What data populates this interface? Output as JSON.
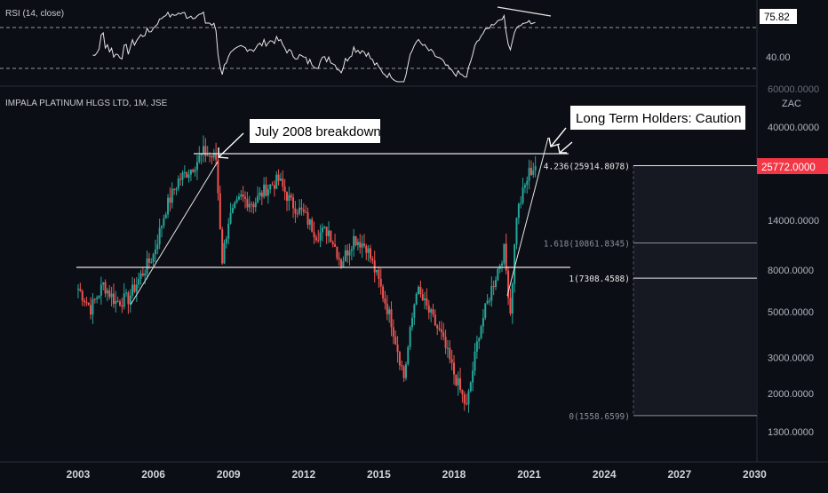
{
  "rsi_panel": {
    "title": "RSI (14, close)",
    "value_label": "75.82",
    "level_label": "40.00",
    "upper_level": 70,
    "lower_level": 30,
    "current_value": 75.82
  },
  "main_panel": {
    "title": "IMPALA PLATINUM HLGS LTD, 1M, JSE",
    "currency": "ZAC",
    "price_label": "25772.0000",
    "current_price": 25772
  },
  "annotations": {
    "breakdown": "July 2008 breakdown",
    "caution": "Long Term Holders: Caution"
  },
  "fib_levels": [
    {
      "label": "4.236(25914.8078)",
      "ratio": 4.236,
      "price": 25914.8078
    },
    {
      "label": "1.618(10861.8345)",
      "ratio": 1.618,
      "price": 10861.8345
    },
    {
      "label": "1(7308.4588)",
      "ratio": 1,
      "price": 7308.4588
    },
    {
      "label": "0(1558.6599)",
      "ratio": 0,
      "price": 1558.6599
    }
  ],
  "price_axis": [
    "40000.0000",
    "14000.0000",
    "8000.0000",
    "5000.0000",
    "3000.0000",
    "2000.0000",
    "1300.0000"
  ],
  "time_axis": [
    "2003",
    "2006",
    "2009",
    "2012",
    "2015",
    "2018",
    "2021",
    "2024",
    "2027",
    "2030"
  ],
  "chart_data": {
    "type": "candlestick",
    "title": "IMPALA PLATINUM HLGS LTD, 1M, JSE",
    "y_scale": "log",
    "ylim": [
      1300,
      60000
    ],
    "xlim": [
      2002.9,
      2030
    ],
    "x": [
      2003.0,
      2003.5,
      2004.0,
      2004.5,
      2005.0,
      2005.5,
      2006.0,
      2006.5,
      2007.0,
      2007.5,
      2008.0,
      2008.5,
      2008.75,
      2009.0,
      2009.5,
      2010.0,
      2010.5,
      2011.0,
      2011.5,
      2012.0,
      2012.5,
      2013.0,
      2013.5,
      2014.0,
      2014.5,
      2015.0,
      2015.5,
      2016.0,
      2016.5,
      2017.0,
      2017.5,
      2018.0,
      2018.5,
      2019.0,
      2019.5,
      2020.0,
      2020.25,
      2020.5,
      2021.0,
      2021.25
    ],
    "close": [
      6500,
      5200,
      6800,
      5600,
      5800,
      7500,
      9500,
      16000,
      22000,
      25000,
      30000,
      28000,
      9000,
      14000,
      18000,
      17000,
      20000,
      22000,
      17000,
      15000,
      12000,
      12500,
      8700,
      11500,
      10500,
      7000,
      4500,
      2400,
      6500,
      5000,
      3800,
      2500,
      1700,
      4000,
      6500,
      10000,
      5000,
      15000,
      24000,
      25772
    ],
    "horizontal_lines": [
      25914.8078,
      8000
    ],
    "rsi_levels": [
      70,
      30
    ]
  }
}
